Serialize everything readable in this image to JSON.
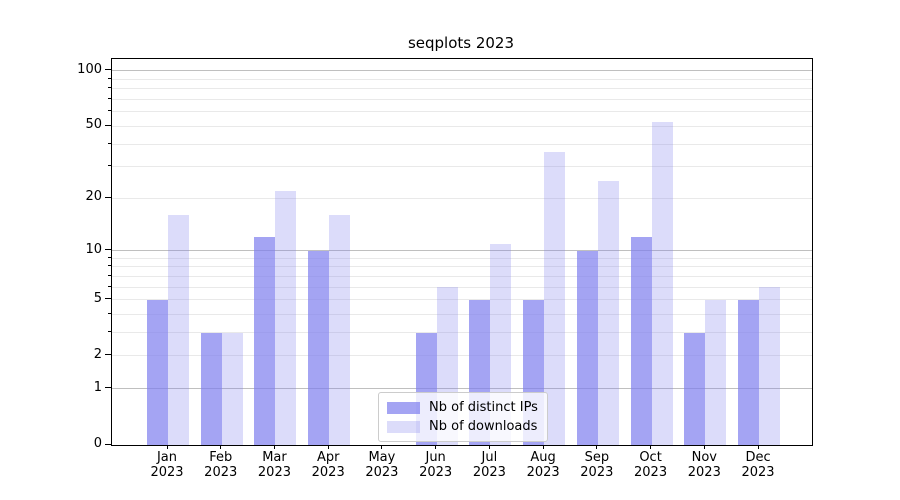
{
  "chart_data": {
    "type": "bar",
    "title": "seqplots 2023",
    "categories": [
      {
        "month": "Jan",
        "year": "2023"
      },
      {
        "month": "Feb",
        "year": "2023"
      },
      {
        "month": "Mar",
        "year": "2023"
      },
      {
        "month": "Apr",
        "year": "2023"
      },
      {
        "month": "May",
        "year": "2023"
      },
      {
        "month": "Jun",
        "year": "2023"
      },
      {
        "month": "Jul",
        "year": "2023"
      },
      {
        "month": "Aug",
        "year": "2023"
      },
      {
        "month": "Sep",
        "year": "2023"
      },
      {
        "month": "Oct",
        "year": "2023"
      },
      {
        "month": "Nov",
        "year": "2023"
      },
      {
        "month": "Dec",
        "year": "2023"
      }
    ],
    "series": [
      {
        "name": "Nb of distinct IPs",
        "color": "#7e7eee",
        "alpha": 0.7,
        "values": [
          5,
          3,
          12,
          10,
          0,
          3,
          5,
          5,
          10,
          12,
          3,
          5
        ]
      },
      {
        "name": "Nb of downloads",
        "color": "#7e7eee",
        "alpha": 0.27,
        "values": [
          16,
          3,
          22,
          16,
          0,
          6,
          11,
          36,
          25,
          53,
          5,
          6
        ]
      }
    ],
    "y_axis": {
      "scale": "log1p",
      "ticks": [
        {
          "value": 0,
          "label": "0"
        },
        {
          "value": 1,
          "label": "1"
        },
        {
          "value": 2,
          "label": "2"
        },
        {
          "value": 5,
          "label": "5"
        },
        {
          "value": 10,
          "label": "10"
        },
        {
          "value": 20,
          "label": "20"
        },
        {
          "value": 50,
          "label": "50"
        },
        {
          "value": 100,
          "label": "100"
        }
      ],
      "major_gridlines": [
        1,
        10,
        100
      ],
      "minor_gridlines": [
        2,
        3,
        4,
        5,
        6,
        7,
        8,
        9,
        20,
        30,
        40,
        50,
        60,
        70,
        80,
        90
      ],
      "minor_tick_values": [
        3,
        4,
        6,
        7,
        8,
        9,
        30,
        40,
        60,
        70,
        80,
        90
      ],
      "range": [
        0,
        115
      ]
    },
    "legend": {
      "position": "lower-center"
    },
    "grid": true
  }
}
